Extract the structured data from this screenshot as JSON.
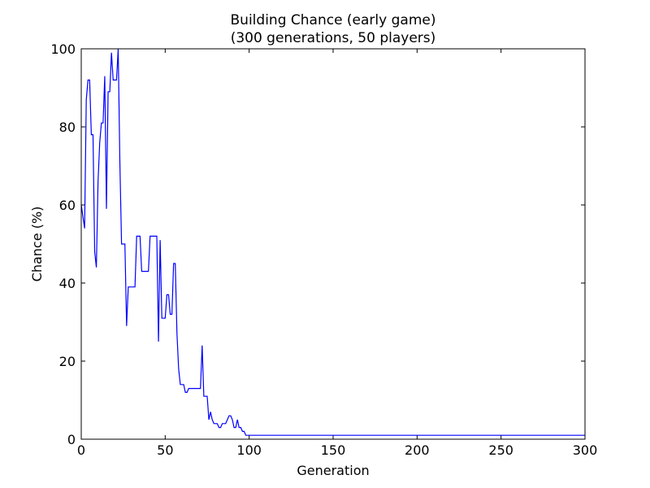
{
  "chart_data": {
    "type": "line",
    "title": [
      "Building Chance (early game)",
      "(300 generations, 50 players)"
    ],
    "xlabel": "Generation",
    "ylabel": "Chance (%)",
    "xlim": [
      0,
      300
    ],
    "ylim": [
      0,
      100
    ],
    "xticks": [
      0,
      50,
      100,
      150,
      200,
      250,
      300
    ],
    "yticks": [
      0,
      20,
      40,
      60,
      80,
      100
    ],
    "grid": false,
    "legend": "none",
    "series": [
      {
        "color": "#0000ff",
        "x": [
          0,
          1,
          2,
          3,
          4,
          5,
          6,
          7,
          8,
          9,
          10,
          11,
          12,
          13,
          14,
          15,
          16,
          17,
          18,
          19,
          20,
          21,
          22,
          23,
          24,
          25,
          26,
          27,
          28,
          29,
          30,
          31,
          32,
          33,
          34,
          35,
          36,
          37,
          38,
          39,
          40,
          41,
          42,
          43,
          44,
          45,
          46,
          47,
          48,
          49,
          50,
          51,
          52,
          53,
          54,
          55,
          56,
          57,
          58,
          59,
          60,
          61,
          62,
          63,
          64,
          65,
          66,
          67,
          68,
          69,
          70,
          71,
          72,
          73,
          74,
          75,
          76,
          77,
          78,
          79,
          80,
          81,
          82,
          83,
          84,
          85,
          86,
          87,
          88,
          89,
          90,
          91,
          92,
          93,
          94,
          95,
          96,
          97,
          98,
          99,
          100,
          300
        ],
        "y": [
          60,
          57,
          54,
          87,
          92,
          92,
          78,
          78,
          48,
          44,
          66,
          76,
          81,
          81,
          93,
          59,
          89,
          89,
          99,
          92,
          92,
          92,
          100,
          71,
          50,
          50,
          50,
          29,
          39,
          39,
          39,
          39,
          39,
          52,
          52,
          52,
          43,
          43,
          43,
          43,
          43,
          52,
          52,
          52,
          52,
          52,
          25,
          51,
          31,
          31,
          31,
          37,
          37,
          32,
          32,
          45,
          45,
          27,
          18,
          14,
          14,
          14,
          12,
          12,
          13,
          13,
          13,
          13,
          13,
          13,
          13,
          13,
          24,
          11,
          11,
          11,
          5,
          7,
          5,
          4,
          4,
          4,
          3,
          3,
          4,
          4,
          4,
          5,
          6,
          6,
          5,
          3,
          3,
          5,
          3,
          3,
          2,
          2,
          1,
          1,
          1,
          1
        ]
      }
    ]
  }
}
